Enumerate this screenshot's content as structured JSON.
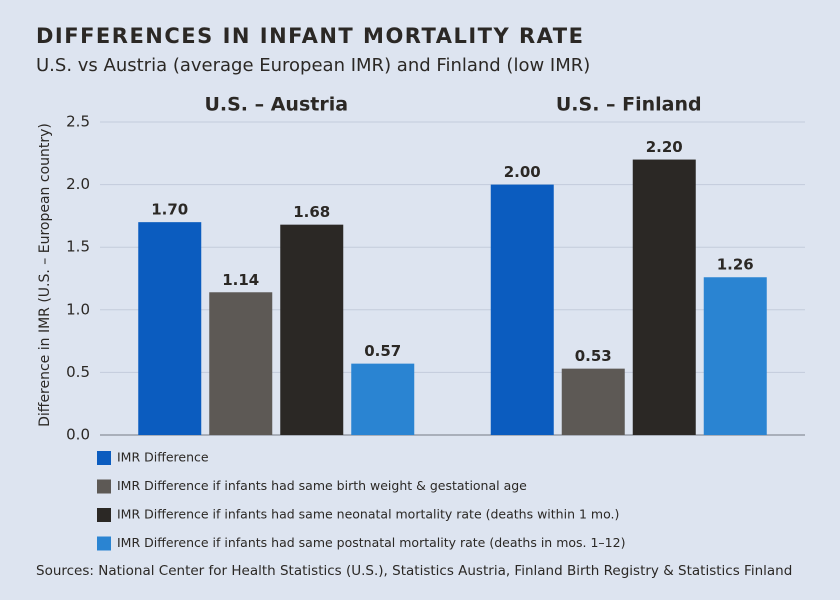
{
  "chart_data": {
    "type": "bar",
    "title": "DIFFERENCES IN INFANT MORTALITY RATE",
    "subtitle": "U.S. vs Austria (average European IMR) and Finland (low IMR)",
    "y_label": "Difference in IMR (U.S. – European country)",
    "categories": [
      "U.S. – Austria",
      "U.S. – Finland"
    ],
    "series": [
      {
        "name": "IMR Difference",
        "color": "#0b5cbf",
        "label_color": "#0b5cbf",
        "values": [
          1.7,
          2.0
        ],
        "value_labels": [
          "1.70",
          "2.00"
        ]
      },
      {
        "name": "IMR Difference if infants had same birth weight & gestational age",
        "color": "#5d5955",
        "label_color": "#2b2825",
        "values": [
          1.14,
          0.53
        ],
        "value_labels": [
          "1.14",
          "0.53"
        ]
      },
      {
        "name": "IMR Difference if infants had same neonatal mortality rate (deaths within 1 mo.)",
        "color": "#2b2825",
        "label_color": "#2b2825",
        "values": [
          1.68,
          2.2
        ],
        "value_labels": [
          "1.68",
          "2.20"
        ]
      },
      {
        "name": "IMR Difference if infants had same postnatal mortality rate (deaths in mos. 1–12)",
        "color": "#2a84d2",
        "label_color": "#2a84d2",
        "values": [
          0.57,
          1.26
        ],
        "value_labels": [
          "0.57",
          "1.26"
        ]
      }
    ],
    "ylim": [
      0,
      2.5
    ],
    "yticks": [
      {
        "value": 0,
        "label": "0.0"
      },
      0.5,
      {
        "value": 1,
        "label": "1.0"
      },
      1.5,
      {
        "value": 2,
        "label": "2.0"
      },
      2.5
    ],
    "grid": true,
    "legend": "bottom",
    "source": "Sources: National Center for Health Statistics (U.S.), Statistics Austria,  Finland Birth Registry & Statistics Finland"
  }
}
